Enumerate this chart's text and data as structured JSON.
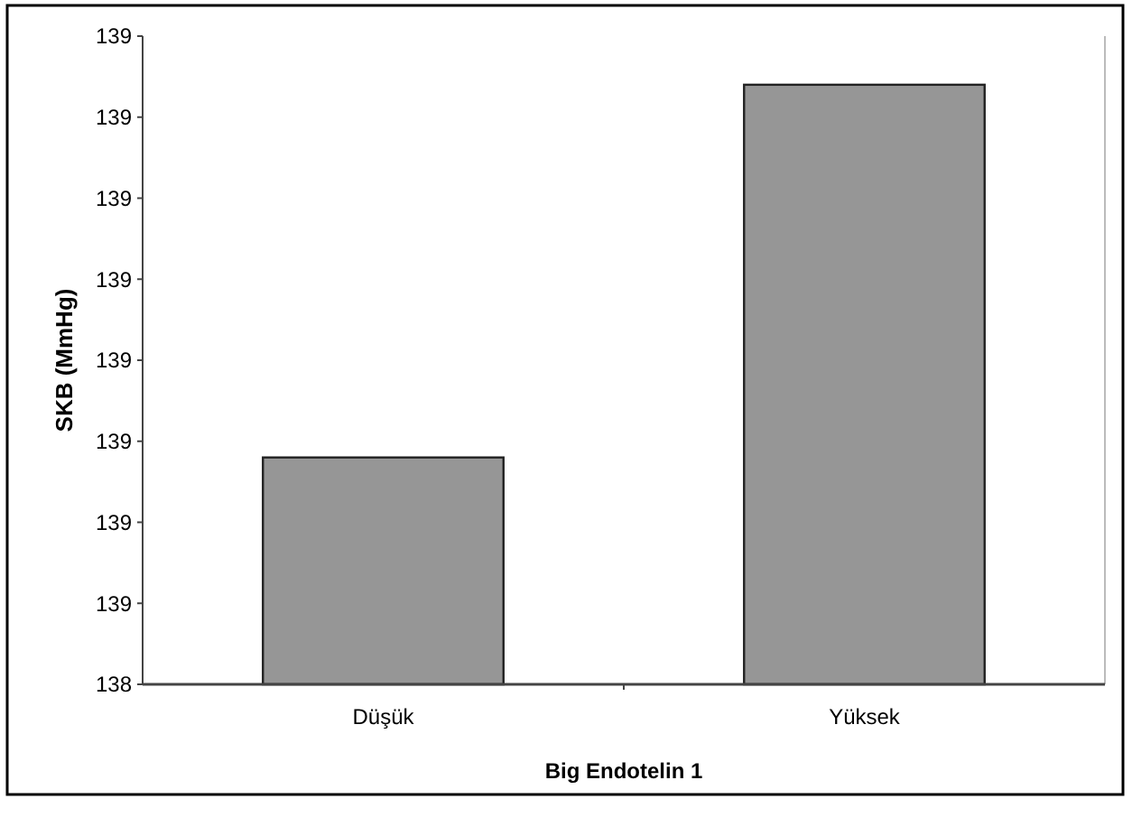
{
  "chart_data": {
    "type": "bar",
    "xlabel": "Big Endotelin 1",
    "ylabel": "SKB (MmHg)",
    "categories": [
      "Düşük",
      "Yüksek"
    ],
    "values": [
      138.68,
      139.14
    ],
    "color": "#969696",
    "ylim": [
      138.4,
      139.2
    ],
    "yticks": [
      {
        "value": 138.4,
        "label": "138"
      },
      {
        "value": 138.5,
        "label": "139"
      },
      {
        "value": 138.6,
        "label": "139"
      },
      {
        "value": 138.7,
        "label": "139"
      },
      {
        "value": 138.8,
        "label": "139"
      },
      {
        "value": 138.9,
        "label": "139"
      },
      {
        "value": 139,
        "label": "139"
      },
      {
        "value": 139.1,
        "label": "139"
      },
      {
        "value": 139.2,
        "label": "139"
      }
    ],
    "grid": false
  }
}
